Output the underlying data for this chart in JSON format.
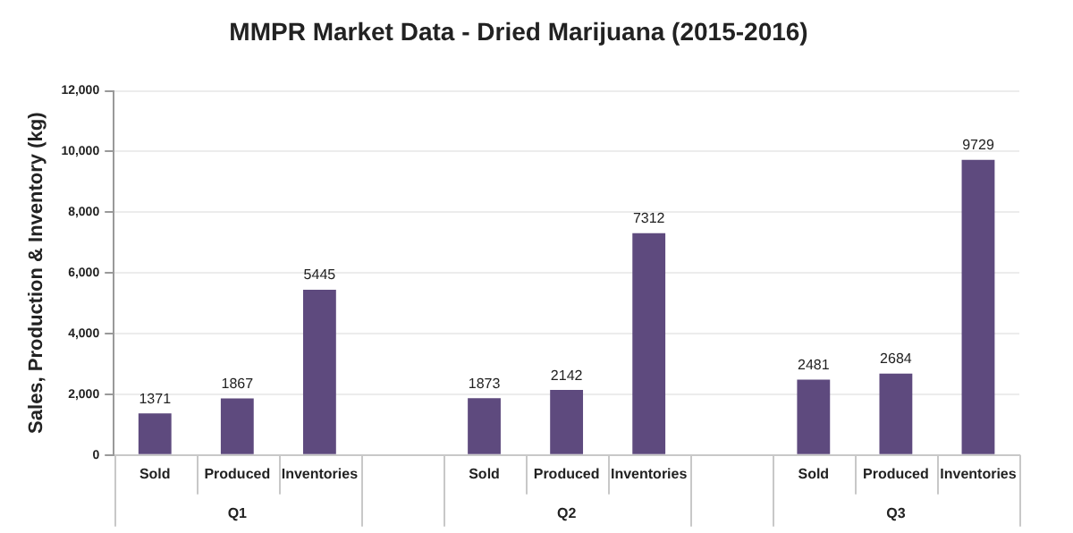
{
  "chart_data": {
    "type": "bar",
    "title": "MMPR Market Data - Dried Marijuana (2015-2016)",
    "ylabel": "Sales, Production & Inventory (kg)",
    "categories": [
      "Sold",
      "Produced",
      "Inventories",
      null,
      "Sold",
      "Produced",
      "Inventories",
      null,
      "Sold",
      "Produced",
      "Inventories"
    ],
    "values": [
      1371,
      1867,
      5445,
      null,
      1873,
      2142,
      7312,
      null,
      2481,
      2684,
      9729
    ],
    "color": "#5e4a7e",
    "ylim": [
      0,
      12000
    ],
    "yticks": [
      {
        "value": 0,
        "label": "0"
      },
      {
        "value": 2000,
        "label": "2,000"
      },
      {
        "value": 4000,
        "label": "4,000"
      },
      {
        "value": 6000,
        "label": "6,000"
      },
      {
        "value": 8000,
        "label": "8,000"
      },
      {
        "value": 10000,
        "label": "10,000"
      },
      {
        "value": 12000,
        "label": "12,000"
      }
    ],
    "grid": "y",
    "data_labels": true,
    "annotations": [
      "Q1",
      "Q2",
      "Q3"
    ]
  }
}
